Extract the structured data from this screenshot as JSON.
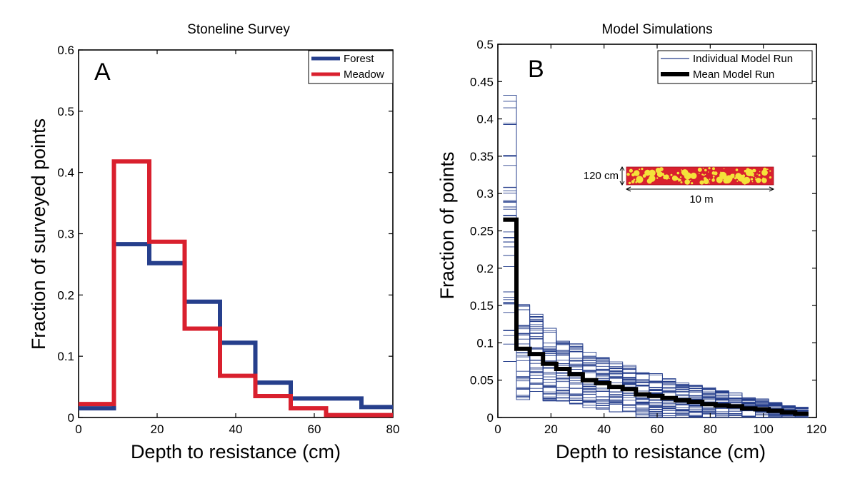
{
  "chart_data": [
    {
      "type": "line",
      "panel_label": "A",
      "title": "Stoneline Survey",
      "xlabel": "Depth to resistance (cm)",
      "ylabel": "Fraction of surveyed points",
      "xlim": [
        0,
        80
      ],
      "ylim": [
        0,
        0.6
      ],
      "xticks": [
        "0",
        "20",
        "40",
        "60",
        "80"
      ],
      "yticks": [
        "0",
        "0.1",
        "0.2",
        "0.3",
        "0.4",
        "0.5",
        "0.6"
      ],
      "legend_position": "top-right",
      "grid": false,
      "series": [
        {
          "name": "Forest",
          "color": "#263f8c",
          "bin_edges": [
            0,
            9,
            18,
            27,
            36,
            45,
            54,
            63,
            72,
            80
          ],
          "values": [
            0.015,
            0.283,
            0.252,
            0.189,
            0.122,
            0.057,
            0.031,
            0.031,
            0.017
          ]
        },
        {
          "name": "Meadow",
          "color": "#d9202e",
          "bin_edges": [
            0,
            9,
            18,
            27,
            36,
            45,
            54,
            63,
            72,
            80
          ],
          "values": [
            0.022,
            0.418,
            0.287,
            0.145,
            0.068,
            0.035,
            0.015,
            0.004,
            0.004
          ]
        }
      ]
    },
    {
      "type": "line",
      "panel_label": "B",
      "title": "Model Simulations",
      "xlabel": "Depth to resistance (cm)",
      "ylabel": "Fraction of  points",
      "xlim": [
        0,
        120
      ],
      "ylim": [
        0,
        0.5
      ],
      "xticks": [
        "0",
        "20",
        "40",
        "60",
        "80",
        "100",
        "120"
      ],
      "yticks": [
        "0",
        "0.05",
        "0.1",
        "0.15",
        "0.2",
        "0.25",
        "0.3",
        "0.35",
        "0.4",
        "0.45",
        "0.5"
      ],
      "legend_position": "top-right",
      "grid": false,
      "series": [
        {
          "name": "Individual Model Run",
          "color": "#263f8c",
          "bin_edges": [
            2,
            7,
            12,
            17,
            22,
            27,
            32,
            37,
            42,
            47,
            52,
            57,
            62,
            67,
            72,
            77,
            82,
            87,
            92,
            97,
            102,
            107,
            112,
            117
          ],
          "mean": [
            0.265,
            0.092,
            0.085,
            0.072,
            0.065,
            0.058,
            0.05,
            0.046,
            0.041,
            0.038,
            0.031,
            0.029,
            0.026,
            0.023,
            0.021,
            0.018,
            0.016,
            0.015,
            0.012,
            0.011,
            0.009,
            0.007,
            0.005
          ],
          "spread": [
            0.19,
            0.07,
            0.055,
            0.05,
            0.045,
            0.042,
            0.038,
            0.036,
            0.034,
            0.033,
            0.031,
            0.03,
            0.028,
            0.026,
            0.024,
            0.022,
            0.02,
            0.018,
            0.016,
            0.014,
            0.012,
            0.01,
            0.009
          ]
        },
        {
          "name": "Mean Model Run",
          "color": "#000000",
          "bin_edges": [
            2,
            7,
            12,
            17,
            22,
            27,
            32,
            37,
            42,
            47,
            52,
            57,
            62,
            67,
            72,
            77,
            82,
            87,
            92,
            97,
            102,
            107,
            112,
            117
          ],
          "values": [
            0.265,
            0.092,
            0.085,
            0.072,
            0.065,
            0.058,
            0.05,
            0.046,
            0.041,
            0.038,
            0.031,
            0.029,
            0.026,
            0.023,
            0.021,
            0.018,
            0.016,
            0.015,
            0.012,
            0.011,
            0.009,
            0.007,
            0.005
          ]
        }
      ],
      "inset": {
        "height_label": "120 cm",
        "width_label": "10 m",
        "fill_color": "#d9202e",
        "particle_color": "#f4e23a"
      }
    }
  ]
}
